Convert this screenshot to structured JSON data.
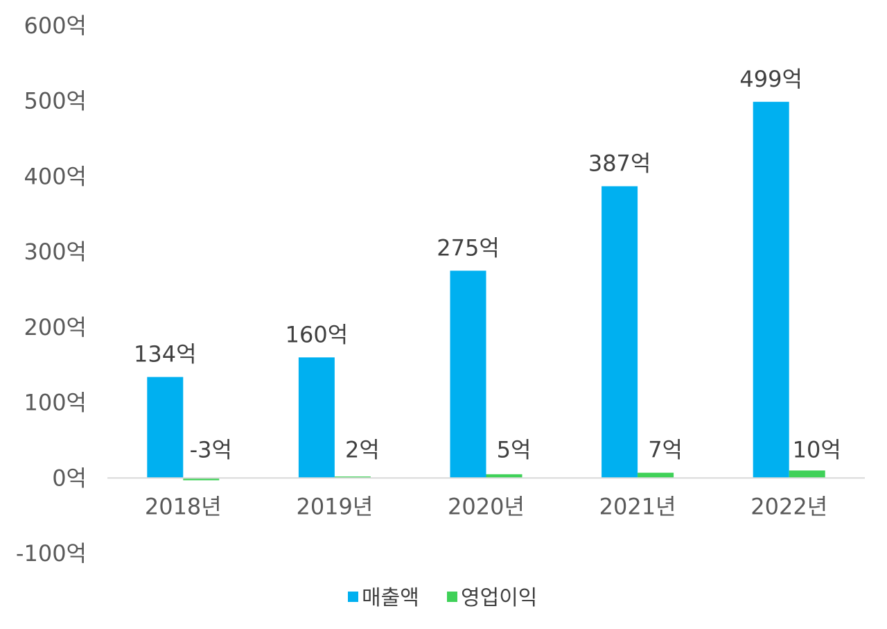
{
  "chart_data": {
    "type": "bar",
    "categories": [
      "2018년",
      "2019년",
      "2020년",
      "2021년",
      "2022년"
    ],
    "series": [
      {
        "name": "매출액",
        "values": [
          134,
          160,
          275,
          387,
          499
        ],
        "labels": [
          "134억",
          "160억",
          "275억",
          "387억",
          "499억"
        ],
        "color": "#00b0f0"
      },
      {
        "name": "영업이익",
        "values": [
          -3,
          2,
          5,
          7,
          10
        ],
        "labels": [
          "-3억",
          "2억",
          "5억",
          "7억",
          "10억"
        ],
        "color": "#3fd158"
      }
    ],
    "y_ticks": [
      {
        "value": 600,
        "label": "600억"
      },
      {
        "value": 500,
        "label": "500억"
      },
      {
        "value": 400,
        "label": "400억"
      },
      {
        "value": 300,
        "label": "300억"
      },
      {
        "value": 200,
        "label": "200억"
      },
      {
        "value": 100,
        "label": "100억"
      },
      {
        "value": 0,
        "label": "0억"
      },
      {
        "value": -100,
        "label": "-100억"
      }
    ],
    "ylim": [
      -100,
      600
    ],
    "grid": false,
    "legend": "bottom",
    "axis_color": "#d9d9d9"
  }
}
